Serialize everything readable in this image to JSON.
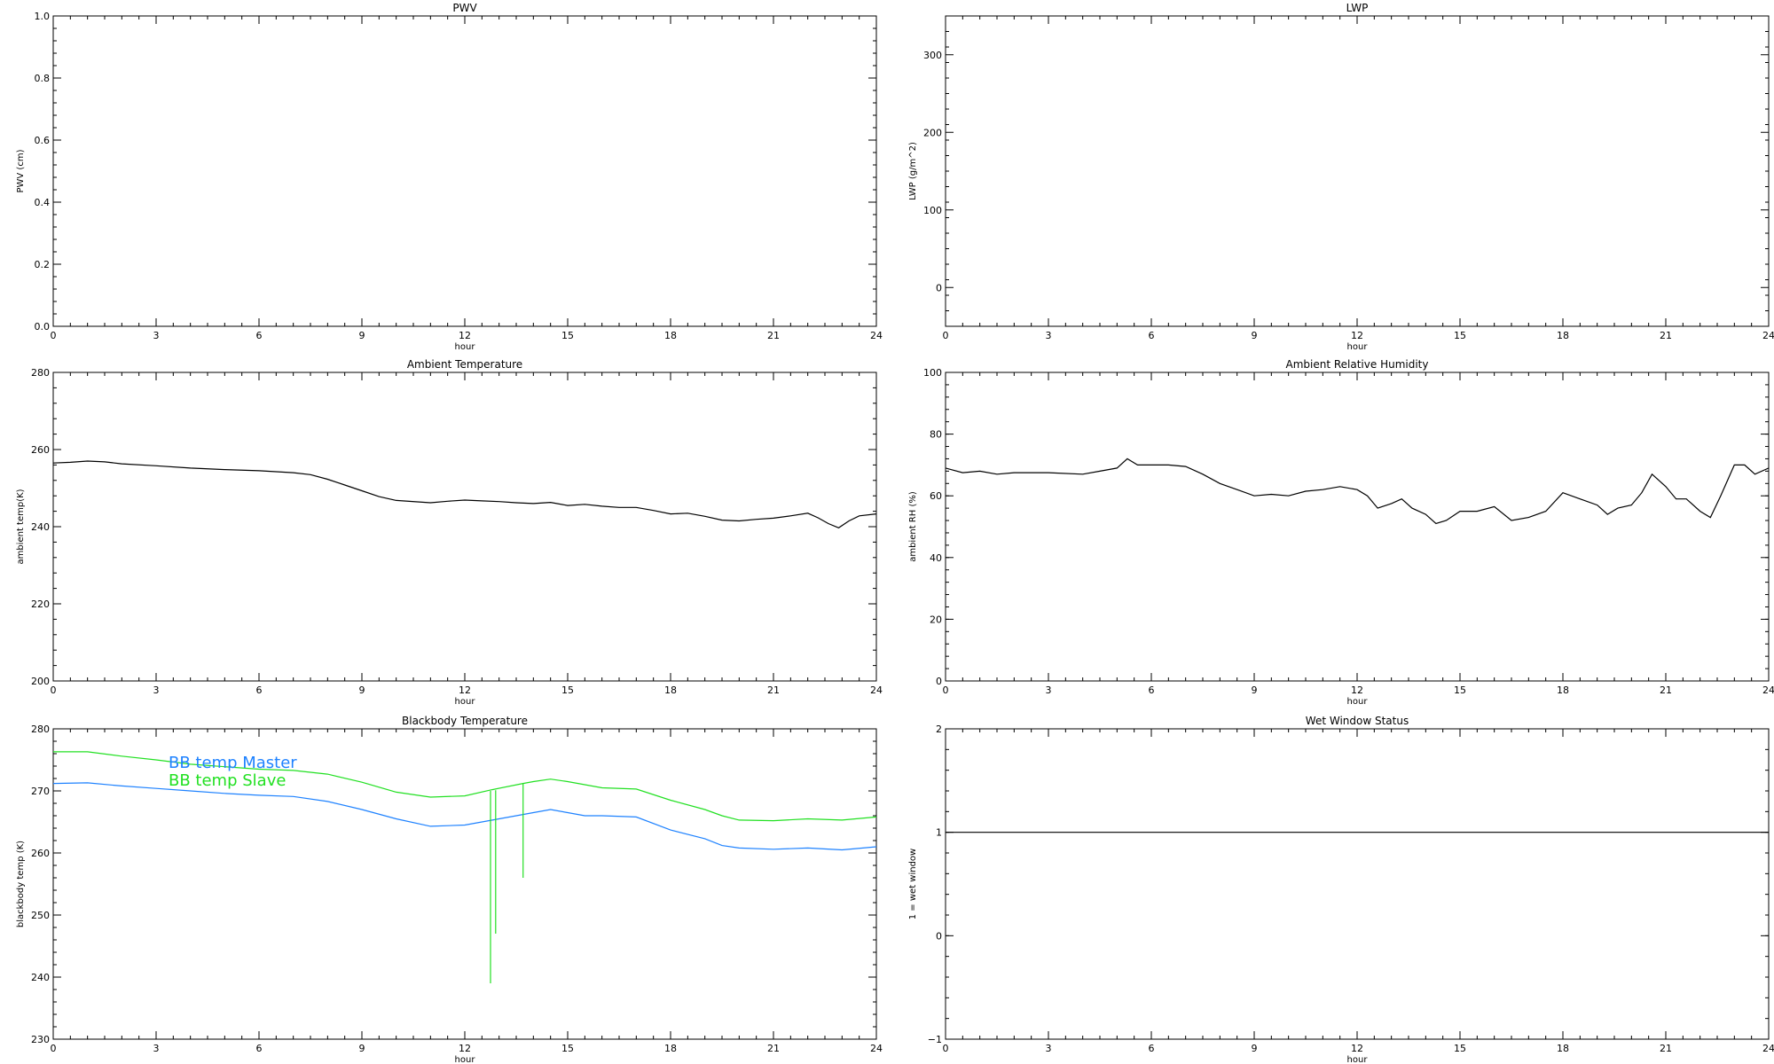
{
  "chart_data": [
    {
      "type": "line",
      "title": "PWV",
      "xlabel": "hour",
      "ylabel": "PWV (cm)",
      "xlim": [
        0,
        24
      ],
      "ylim": [
        0.0,
        1.0
      ],
      "x_ticks": [
        "0",
        "3",
        "6",
        "9",
        "12",
        "15",
        "18",
        "21",
        "24"
      ],
      "y_ticks": [
        "0.0",
        "0.2",
        "0.4",
        "0.6",
        "0.8",
        "1.0"
      ],
      "series": []
    },
    {
      "type": "line",
      "title": "LWP",
      "xlabel": "hour",
      "ylabel": "LWP (g/m^2)",
      "xlim": [
        0,
        24
      ],
      "ylim": [
        -50,
        350
      ],
      "x_ticks": [
        "0",
        "3",
        "6",
        "9",
        "12",
        "15",
        "18",
        "21",
        "24"
      ],
      "y_ticks": [
        "0",
        "100",
        "200",
        "300"
      ],
      "series": []
    },
    {
      "type": "line",
      "title": "Ambient Temperature",
      "xlabel": "hour",
      "ylabel": "ambient temp(K)",
      "xlim": [
        0,
        24
      ],
      "ylim": [
        200,
        280
      ],
      "x_ticks": [
        "0",
        "3",
        "6",
        "9",
        "12",
        "15",
        "18",
        "21",
        "24"
      ],
      "y_ticks": [
        "200",
        "220",
        "240",
        "260",
        "280"
      ],
      "series": [
        {
          "color": "#000000",
          "x": [
            0,
            0.5,
            1,
            1.5,
            2,
            3,
            4,
            5,
            6,
            7,
            7.5,
            8,
            8.5,
            9,
            9.5,
            10,
            11,
            11.5,
            12,
            12.5,
            13,
            13.5,
            14,
            14.5,
            15,
            15.5,
            16,
            16.5,
            17,
            17.5,
            18,
            18.5,
            19,
            19.5,
            20,
            20.5,
            21,
            21.5,
            22,
            22.3,
            22.6,
            22.9,
            23.2,
            23.5,
            24
          ],
          "y": [
            256.5,
            256.7,
            257.0,
            256.8,
            256.3,
            255.8,
            255.2,
            254.8,
            254.5,
            254.0,
            253.5,
            252.3,
            250.8,
            249.3,
            247.8,
            246.8,
            246.2,
            246.6,
            246.9,
            246.7,
            246.5,
            246.2,
            246.0,
            246.3,
            245.5,
            245.8,
            245.3,
            245.0,
            245.0,
            244.2,
            243.3,
            243.5,
            242.7,
            241.7,
            241.5,
            241.9,
            242.2,
            242.8,
            243.5,
            242.3,
            240.8,
            239.7,
            241.5,
            242.8,
            243.3
          ]
        }
      ]
    },
    {
      "type": "line",
      "title": "Ambient Relative Humidity",
      "xlabel": "hour",
      "ylabel": "ambient RH (%)",
      "xlim": [
        0,
        24
      ],
      "ylim": [
        0,
        100
      ],
      "x_ticks": [
        "0",
        "3",
        "6",
        "9",
        "12",
        "15",
        "18",
        "21",
        "24"
      ],
      "y_ticks": [
        "0",
        "20",
        "40",
        "60",
        "80",
        "100"
      ],
      "series": [
        {
          "color": "#000000",
          "x": [
            0,
            0.5,
            1,
            1.5,
            2,
            3,
            4,
            4.5,
            5,
            5.3,
            5.6,
            6,
            6.5,
            7,
            7.5,
            8,
            8.5,
            9,
            9.5,
            10,
            10.5,
            11,
            11.5,
            12,
            12.3,
            12.6,
            13,
            13.3,
            13.6,
            14,
            14.3,
            14.6,
            15,
            15.5,
            16,
            16.5,
            17,
            17.5,
            18,
            18.5,
            19,
            19.3,
            19.6,
            20,
            20.3,
            20.6,
            21,
            21.3,
            21.6,
            22,
            22.3,
            22.6,
            23,
            23.3,
            23.6,
            24
          ],
          "y": [
            69,
            67.5,
            68,
            67,
            67.5,
            67.5,
            67,
            68,
            69,
            72,
            70,
            70,
            70,
            69.5,
            67,
            64,
            62,
            60,
            60.5,
            60,
            61.5,
            62,
            63,
            62,
            60,
            56,
            57.5,
            59,
            56,
            54,
            51,
            52,
            55,
            55,
            56.5,
            52,
            53,
            55,
            61,
            59,
            57,
            54,
            56,
            57,
            61,
            67,
            63,
            59,
            59,
            55,
            53,
            60,
            70,
            70,
            67,
            69
          ]
        }
      ]
    },
    {
      "type": "line",
      "title": "Blackbody Temperature",
      "xlabel": "hour",
      "ylabel": "blackbody temp (K)",
      "xlim": [
        0,
        24
      ],
      "ylim": [
        230,
        280
      ],
      "x_ticks": [
        "0",
        "3",
        "6",
        "9",
        "12",
        "15",
        "18",
        "21",
        "24"
      ],
      "y_ticks": [
        "230",
        "240",
        "250",
        "260",
        "270",
        "280"
      ],
      "legend_position": "upper-left",
      "series": [
        {
          "name": "BB temp Master",
          "color": "#1e82ff",
          "x": [
            0,
            1,
            2,
            3,
            4,
            5,
            6,
            7,
            8,
            9,
            10,
            11,
            12,
            13,
            14,
            14.5,
            15,
            15.5,
            16,
            17,
            18,
            19,
            19.5,
            20,
            21,
            22,
            23,
            24
          ],
          "y": [
            271.2,
            271.3,
            270.8,
            270.4,
            270.0,
            269.6,
            269.3,
            269.1,
            268.3,
            267.0,
            265.5,
            264.3,
            264.5,
            265.5,
            266.5,
            267.0,
            266.5,
            266.0,
            266.0,
            265.8,
            263.7,
            262.3,
            261.2,
            260.8,
            260.6,
            260.8,
            260.5,
            261.0
          ]
        },
        {
          "name": "BB temp Slave",
          "color": "#22e022",
          "x": [
            0,
            1,
            2,
            3,
            4,
            5,
            6,
            7,
            8,
            9,
            10,
            11,
            12,
            12.8,
            13.7,
            14,
            14.5,
            15,
            16,
            17,
            18,
            19,
            19.5,
            20,
            21,
            22,
            23,
            24
          ],
          "y": [
            276.3,
            276.3,
            275.6,
            275.0,
            274.3,
            273.9,
            273.5,
            273.3,
            272.7,
            271.4,
            269.8,
            269.0,
            269.2,
            270.2,
            271.2,
            271.5,
            271.9,
            271.5,
            270.5,
            270.3,
            268.5,
            267.0,
            266.0,
            265.3,
            265.2,
            265.5,
            265.3,
            265.8
          ]
        }
      ],
      "spikes": [
        {
          "x": 12.75,
          "y_from": 270.0,
          "y_to": 239.0
        },
        {
          "x": 12.9,
          "y_from": 270.1,
          "y_to": 247.0
        },
        {
          "x": 13.7,
          "y_from": 271.2,
          "y_to": 256.0
        }
      ]
    },
    {
      "type": "line",
      "title": "Wet Window Status",
      "xlabel": "hour",
      "ylabel": "1 = wet window",
      "xlim": [
        0,
        24
      ],
      "ylim": [
        -1,
        2
      ],
      "x_ticks": [
        "0",
        "3",
        "6",
        "9",
        "12",
        "15",
        "18",
        "21",
        "24"
      ],
      "y_ticks": [
        "−1",
        "0",
        "1",
        "2"
      ],
      "series": [
        {
          "color": "#000000",
          "x": [
            0,
            24
          ],
          "y": [
            1,
            1
          ]
        }
      ]
    }
  ]
}
